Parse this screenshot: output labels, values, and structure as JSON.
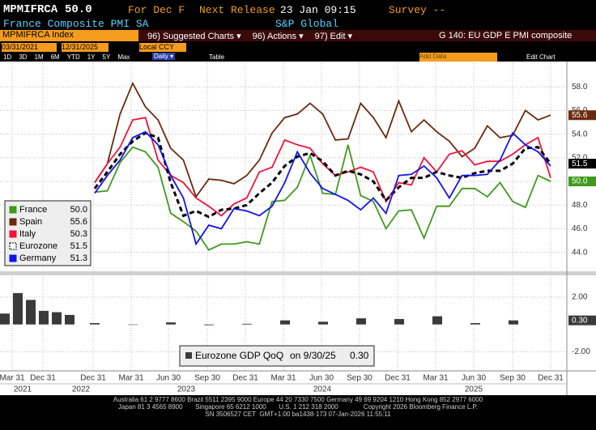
{
  "header": {
    "ticker": "MPMIFRCA",
    "last": "50.0",
    "for_label": "For Dec F",
    "next_release": "Next Release",
    "release_date": "23 Jan 09:15",
    "survey": "Survey --",
    "name": "France Composite PMI SA",
    "source": "S&P Global"
  },
  "toolbar": {
    "security": "MPMIFRCA Index",
    "menus": [
      "96) Suggested Charts ▾",
      "96) Actions ▾",
      "97) Edit ▾"
    ],
    "chart_name": "G 140: EU GDP E PMI composite",
    "start_date": "03/31/2021",
    "end_date": "12/31/2025",
    "currency": "Local CCY",
    "periods": [
      "1D",
      "3D",
      "1M",
      "6M",
      "YTD",
      "1Y",
      "5Y",
      "Max"
    ],
    "frequency": "Daily ▾",
    "table": "Table",
    "add_data": "Add Data",
    "edit_chart": "Edit Chart"
  },
  "chart_data": [
    {
      "type": "line",
      "ylim": [
        42.4,
        60.0
      ],
      "yticks": [
        {
          "value": 44,
          "label": "44.0"
        },
        {
          "value": 46,
          "label": "46.0"
        },
        {
          "value": 48,
          "label": "48.0"
        },
        {
          "value": 50,
          "label": "50.0"
        },
        {
          "value": 52,
          "label": "52.0"
        },
        {
          "value": 54,
          "label": "54.0"
        },
        {
          "value": 56,
          "label": "56.0"
        },
        {
          "value": 58,
          "label": "58.0"
        }
      ],
      "series": [
        {
          "name": "France",
          "color": "#3f9a1c",
          "legend_value": "50.0",
          "tag": "50.0",
          "values": [
            49.1,
            49.2,
            51.6,
            52.9,
            52.5,
            51.2,
            47.3,
            46.6,
            45.8,
            44.2,
            44.7,
            44.7,
            44.9,
            44.7,
            48.3,
            48.4,
            49.5,
            52.2,
            49.0,
            48.9,
            53.1,
            48.8,
            48.3,
            46.0,
            47.5,
            47.6,
            45.2,
            47.9,
            47.9,
            49.4,
            49.4,
            48.7,
            49.9,
            48.3,
            47.8,
            50.5,
            50.0
          ]
        },
        {
          "name": "Spain",
          "color": "#6b2a0e",
          "legend_value": "55.6",
          "tag": "55.6",
          "values": [
            49.9,
            51.5,
            55.7,
            58.3,
            56.3,
            55.2,
            52.8,
            51.8,
            48.7,
            50.2,
            50.1,
            49.8,
            50.5,
            51.8,
            54.1,
            55.4,
            55.7,
            56.6,
            55.7,
            53.5,
            53.6,
            56.6,
            55.4,
            53.7,
            56.8,
            54.2,
            55.2,
            54.2,
            53.4,
            52.1,
            52.8,
            54.7,
            53.7,
            53.9,
            56.0,
            55.2,
            55.6
          ]
        },
        {
          "name": "Italy",
          "color": "#f0143c",
          "legend_value": "50.3",
          "values": [
            49.9,
            51.5,
            52.9,
            55.2,
            55.4,
            51.8,
            50.5,
            49.9,
            48.6,
            47.9,
            47.1,
            48.1,
            48.6,
            50.8,
            51.2,
            53.5,
            53.1,
            52.8,
            51.5,
            50.5,
            50.8,
            51.2,
            50.8,
            48.3,
            49.9,
            49.7,
            52.0,
            50.8,
            52.3,
            52.6,
            51.4,
            51.7,
            51.7,
            52.3,
            53.1,
            53.7,
            50.3
          ]
        },
        {
          "name": "Eurozone",
          "color": "#000000",
          "dashed": true,
          "legend_value": "51.5",
          "tag": "51.5",
          "values": [
            49.4,
            50.8,
            52.3,
            53.4,
            54.1,
            53.7,
            49.9,
            47.1,
            47.5,
            47.0,
            47.6,
            47.7,
            48.0,
            49.0,
            49.9,
            51.3,
            52.1,
            52.4,
            51.7,
            50.5,
            50.9,
            50.6,
            50.0,
            48.4,
            49.5,
            50.3,
            50.3,
            50.8,
            50.5,
            50.3,
            50.7,
            50.9,
            50.9,
            51.5,
            52.8,
            52.9,
            51.5
          ]
        },
        {
          "name": "Germany",
          "color": "#1414e6",
          "legend_value": "51.3",
          "values": [
            49.0,
            50.5,
            51.8,
            53.7,
            54.2,
            53.1,
            50.5,
            48.6,
            44.7,
            46.3,
            46.0,
            47.7,
            47.5,
            47.1,
            47.9,
            49.9,
            52.5,
            50.7,
            49.4,
            48.9,
            48.4,
            47.6,
            48.6,
            47.3,
            50.5,
            50.6,
            51.3,
            50.3,
            48.6,
            50.5,
            50.5,
            50.6,
            51.8,
            54.1,
            53.1,
            52.5,
            51.3
          ]
        }
      ]
    },
    {
      "type": "bar",
      "ylim": [
        -3.4,
        3.6
      ],
      "yticks": [
        {
          "value": 2,
          "label": "2.00"
        },
        {
          "value": -2,
          "label": "-2.00"
        }
      ],
      "series": [
        {
          "name": "Eurozone GDP QoQ",
          "color": "#3a3a3a",
          "last_date": "on 9/30/25",
          "last_label": "0.30",
          "values": [
            0.8,
            2.3,
            1.8,
            1.0,
            0.9,
            0.7,
            0.1,
            0.0,
            0.15,
            -0.05,
            0.05,
            0.3,
            0.2,
            0.45,
            0.4,
            0.6,
            0.1,
            0.3
          ]
        }
      ]
    }
  ],
  "x_axis": {
    "labels": [
      "Mar 31",
      "Dec 31",
      "Dec 31",
      "Mar 31",
      "Jun 30",
      "Sep 30",
      "Dec 31",
      "Mar 31",
      "Jun 30",
      "Sep 30",
      "Dec 31",
      "Mar 31",
      "Jun 30",
      "Sep 30",
      "Dec 31"
    ],
    "years": [
      "2021",
      "2022",
      "2023",
      "2024",
      "2025"
    ]
  },
  "footer": [
    "Australia 61 2 9777 8600 Brazil 5511 2395 9000 Europe 44 20 7330 7500 Germany 49 69 9204 1210 Hong Kong 852 2977 6000",
    "Japan 81 3 4565 8900       Singapore 65 6212 1000       U.S. 1 212 318 2000              Copyright 2026 Bloomberg Finance L.P.",
    "SN 3506527 CET  GMT+1:00 ba1438-173 07-Jan-2026 11:55:11"
  ]
}
